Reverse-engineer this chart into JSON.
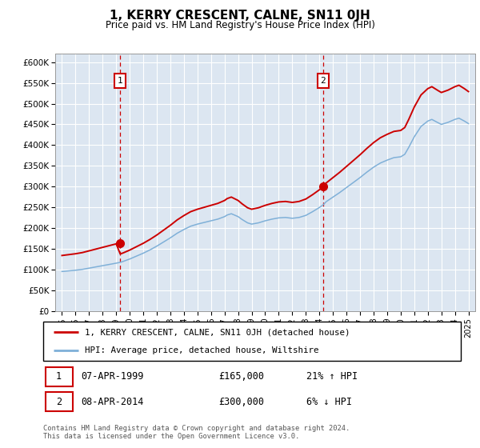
{
  "title": "1, KERRY CRESCENT, CALNE, SN11 0JH",
  "subtitle": "Price paid vs. HM Land Registry's House Price Index (HPI)",
  "ylim": [
    0,
    620000
  ],
  "yticks": [
    0,
    50000,
    100000,
    150000,
    200000,
    250000,
    300000,
    350000,
    400000,
    450000,
    500000,
    550000,
    600000
  ],
  "ytick_labels": [
    "£0",
    "£50K",
    "£100K",
    "£150K",
    "£200K",
    "£250K",
    "£300K",
    "£350K",
    "£400K",
    "£450K",
    "£500K",
    "£550K",
    "£600K"
  ],
  "plot_bg_color": "#dce6f1",
  "grid_color": "#ffffff",
  "line1_color": "#cc0000",
  "line2_color": "#7fb0d8",
  "sale1_date": 1999.27,
  "sale1_price": 165000,
  "sale2_date": 2014.27,
  "sale2_price": 300000,
  "marker_color": "#cc0000",
  "marker_size": 7,
  "legend_line1": "1, KERRY CRESCENT, CALNE, SN11 0JH (detached house)",
  "legend_line2": "HPI: Average price, detached house, Wiltshire",
  "table_row1_num": "1",
  "table_row1_date": "07-APR-1999",
  "table_row1_price": "£165,000",
  "table_row1_hpi": "21% ↑ HPI",
  "table_row2_num": "2",
  "table_row2_date": "08-APR-2014",
  "table_row2_price": "£300,000",
  "table_row2_hpi": "6% ↓ HPI",
  "footnote": "Contains HM Land Registry data © Crown copyright and database right 2024.\nThis data is licensed under the Open Government Licence v3.0.",
  "xmin": 1994.5,
  "xmax": 2025.5,
  "hpi_x": [
    1995,
    1995.5,
    1996,
    1996.5,
    1997,
    1997.5,
    1998,
    1998.5,
    1999,
    1999.3,
    1999.5,
    2000,
    2000.5,
    2001,
    2001.5,
    2002,
    2002.5,
    2003,
    2003.5,
    2004,
    2004.5,
    2005,
    2005.5,
    2006,
    2006.5,
    2007,
    2007.2,
    2007.5,
    2008,
    2008.3,
    2008.7,
    2009,
    2009.5,
    2010,
    2010.5,
    2011,
    2011.5,
    2012,
    2012.5,
    2013,
    2013.5,
    2014,
    2014.3,
    2014.5,
    2015,
    2015.5,
    2016,
    2016.5,
    2017,
    2017.5,
    2018,
    2018.5,
    2019,
    2019.5,
    2020,
    2020.3,
    2020.6,
    2021,
    2021.5,
    2022,
    2022.3,
    2022.7,
    2023,
    2023.5,
    2024,
    2024.3,
    2024.7,
    2025
  ],
  "hpi_y": [
    96000,
    97500,
    99000,
    101000,
    104000,
    107000,
    110000,
    113000,
    116000,
    118000,
    120000,
    126000,
    133000,
    140000,
    148000,
    157000,
    167000,
    177000,
    188000,
    197000,
    205000,
    210000,
    214000,
    218000,
    222000,
    228000,
    232000,
    235000,
    228000,
    221000,
    213000,
    210000,
    213000,
    218000,
    222000,
    225000,
    226000,
    224000,
    226000,
    231000,
    240000,
    250000,
    257000,
    264000,
    275000,
    286000,
    298000,
    310000,
    322000,
    335000,
    347000,
    357000,
    364000,
    370000,
    372000,
    378000,
    395000,
    420000,
    445000,
    458000,
    462000,
    455000,
    450000,
    455000,
    462000,
    465000,
    458000,
    452000
  ]
}
